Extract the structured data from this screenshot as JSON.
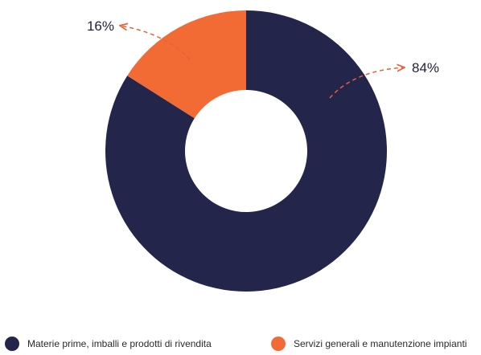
{
  "chart_data": {
    "type": "pie",
    "subtype": "donut",
    "title": "",
    "categories": [
      "Materie prime, imballi e prodotti di rivendita",
      "Servizi generali e manutenzione impianti"
    ],
    "values": [
      84,
      16
    ],
    "data_labels": [
      "84%",
      "16%"
    ],
    "colors": [
      "#23254a",
      "#f26b35"
    ],
    "legend": {
      "placement": "bottom",
      "entries": [
        {
          "label": "Materie prime, imballi e prodotti di rivendita",
          "color": "#23254a"
        },
        {
          "label": "Servizi generali e manutenzione impianti",
          "color": "#f26b35"
        }
      ]
    },
    "annotation_arrow_color": "#e8603a"
  }
}
